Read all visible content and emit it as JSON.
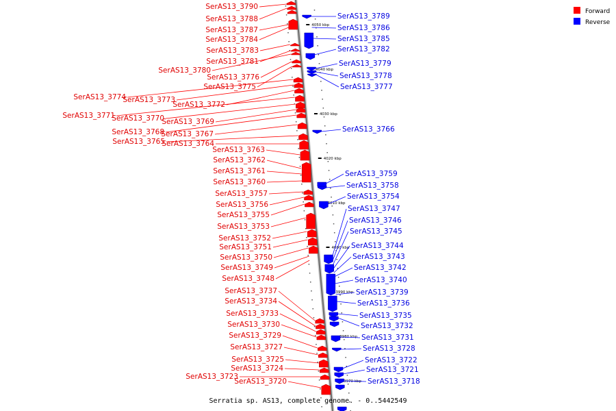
{
  "caption": "Serratia sp. AS13, complete genome. - 0..5442549",
  "legend": {
    "forward_label": "Forward",
    "reverse_label": "Reverse",
    "forward_color": "#ff0000",
    "reverse_color": "#0000ff"
  },
  "axis_ticks": [
    "4050 kbp",
    "4040 kbp",
    "4030 kbp",
    "4020 kbp",
    "4010 kbp",
    "4000 kbp",
    "3990 kbp",
    "3980 kbp",
    "3970 kbp"
  ],
  "forward_genes": [
    "SerAS13_3790",
    "SerAS13_3788",
    "SerAS13_3787",
    "SerAS13_3784",
    "SerAS13_3783",
    "SerAS13_3781",
    "SerAS13_3780",
    "SerAS13_3776",
    "SerAS13_3775",
    "SerAS13_3774",
    "SerAS13_3773",
    "SerAS13_3772",
    "SerAS13_3771",
    "SerAS13_3770",
    "SerAS13_3769",
    "SerAS13_3768",
    "SerAS13_3767",
    "SerAS13_3765",
    "SerAS13_3764",
    "SerAS13_3763",
    "SerAS13_3762",
    "SerAS13_3761",
    "SerAS13_3760",
    "SerAS13_3757",
    "SerAS13_3756",
    "SerAS13_3755",
    "SerAS13_3753",
    "SerAS13_3752",
    "SerAS13_3751",
    "SerAS13_3750",
    "SerAS13_3749",
    "SerAS13_3748",
    "SerAS13_3737",
    "SerAS13_3734",
    "SerAS13_3733",
    "SerAS13_3730",
    "SerAS13_3729",
    "SerAS13_3727",
    "SerAS13_3725",
    "SerAS13_3724",
    "SerAS13_3723",
    "SerAS13_3720"
  ],
  "reverse_genes": [
    "SerAS13_3789",
    "SerAS13_3786",
    "SerAS13_3785",
    "SerAS13_3782",
    "SerAS13_3779",
    "SerAS13_3778",
    "SerAS13_3777",
    "SerAS13_3766",
    "SerAS13_3759",
    "SerAS13_3758",
    "SerAS13_3754",
    "SerAS13_3747",
    "SerAS13_3746",
    "SerAS13_3745",
    "SerAS13_3744",
    "SerAS13_3743",
    "SerAS13_3742",
    "SerAS13_3740",
    "SerAS13_3739",
    "SerAS13_3736",
    "SerAS13_3735",
    "SerAS13_3732",
    "SerAS13_3731",
    "SerAS13_3728",
    "SerAS13_3722",
    "SerAS13_3721",
    "SerAS13_3718"
  ]
}
